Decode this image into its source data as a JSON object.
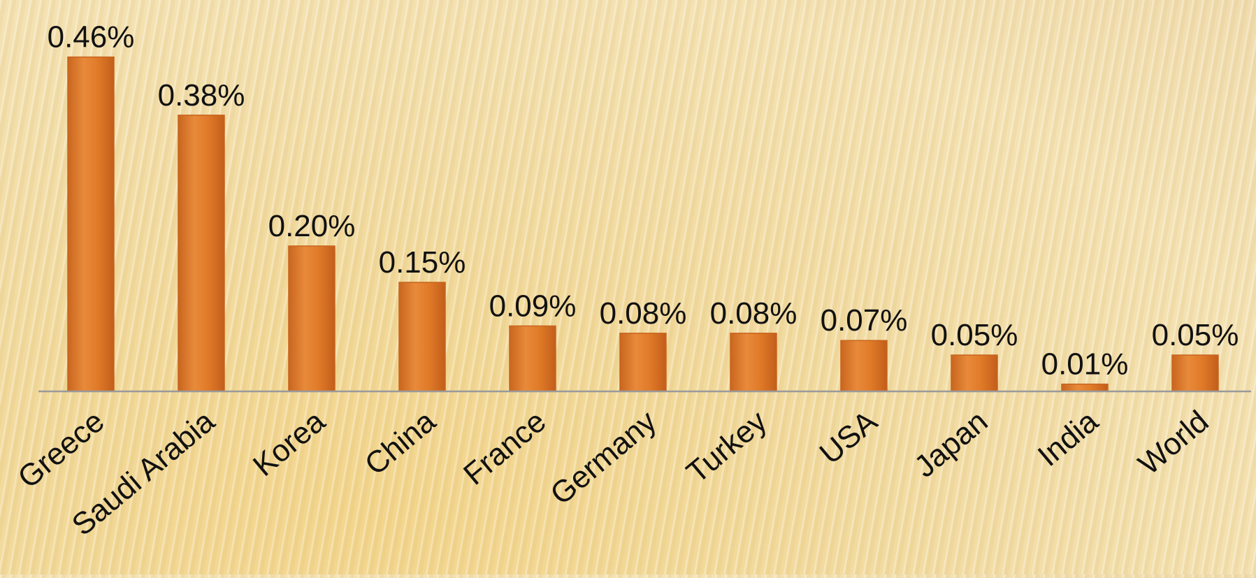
{
  "chart_data": {
    "type": "bar",
    "title": "",
    "xlabel": "",
    "ylabel": "",
    "categories": [
      "Greece",
      "Saudi Arabia",
      "Korea",
      "China",
      "France",
      "Germany",
      "Turkey",
      "USA",
      "Japan",
      "India",
      "World"
    ],
    "values": [
      0.46,
      0.38,
      0.2,
      0.15,
      0.09,
      0.08,
      0.08,
      0.07,
      0.05,
      0.01,
      0.05
    ],
    "value_labels": [
      "0.46%",
      "0.38%",
      "0.20%",
      "0.15%",
      "0.09%",
      "0.08%",
      "0.08%",
      "0.07%",
      "0.05%",
      "0.01%",
      "0.05%"
    ],
    "ylim": [
      0,
      0.5
    ],
    "grid": false,
    "legend": "none",
    "colors": {
      "bar": "#e07a28",
      "bar_highlight": "#f0a060",
      "bar_edge": "#c8651e",
      "axis": "#9a9a9a"
    }
  }
}
